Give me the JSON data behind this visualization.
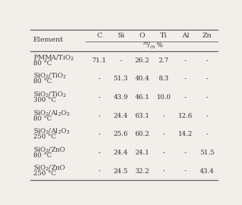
{
  "col_headers": [
    "C",
    "Si",
    "O",
    "Ti",
    "Al",
    "Zn"
  ],
  "sub_header": "$^{m}/_{m}$ %",
  "row_labels_line1": [
    "PMMA/TiO$_2$",
    "SiO$_2$/TiO$_2$",
    "SiO$_2$/TiO$_2$",
    "SiO$_2$/Al$_2$O$_3$",
    "SiO$_2$/Al$_2$O$_3$",
    "SiO$_2$/ZnO",
    "SiO$_2$/ZnO"
  ],
  "row_labels_line2": [
    "80 °C",
    "80 °C",
    "300 °C",
    "80 °C",
    "250 °C",
    "80 °C",
    "250 °C"
  ],
  "data": [
    [
      "71.1",
      "-",
      "26.2",
      "2.7",
      "-",
      "-"
    ],
    [
      "-",
      "51.3",
      "40.4",
      "8.3",
      "-",
      "-"
    ],
    [
      "-",
      "43.9",
      "46.1",
      "10.0",
      "-",
      "-"
    ],
    [
      "-",
      "24.4",
      "63.1",
      "-",
      "12.6",
      "-"
    ],
    [
      "-",
      "25.6",
      "60.2",
      "-",
      "14.2",
      "-"
    ],
    [
      "-",
      "24.4",
      "24.1",
      "-",
      "-",
      "51.5"
    ],
    [
      "-",
      "24.5",
      "32.2",
      "-",
      "-",
      "43.4"
    ]
  ],
  "element_label": "Element",
  "bg_color": "#f2efea",
  "text_color": "#333333",
  "font_size": 6.8,
  "header_font_size": 7.5
}
